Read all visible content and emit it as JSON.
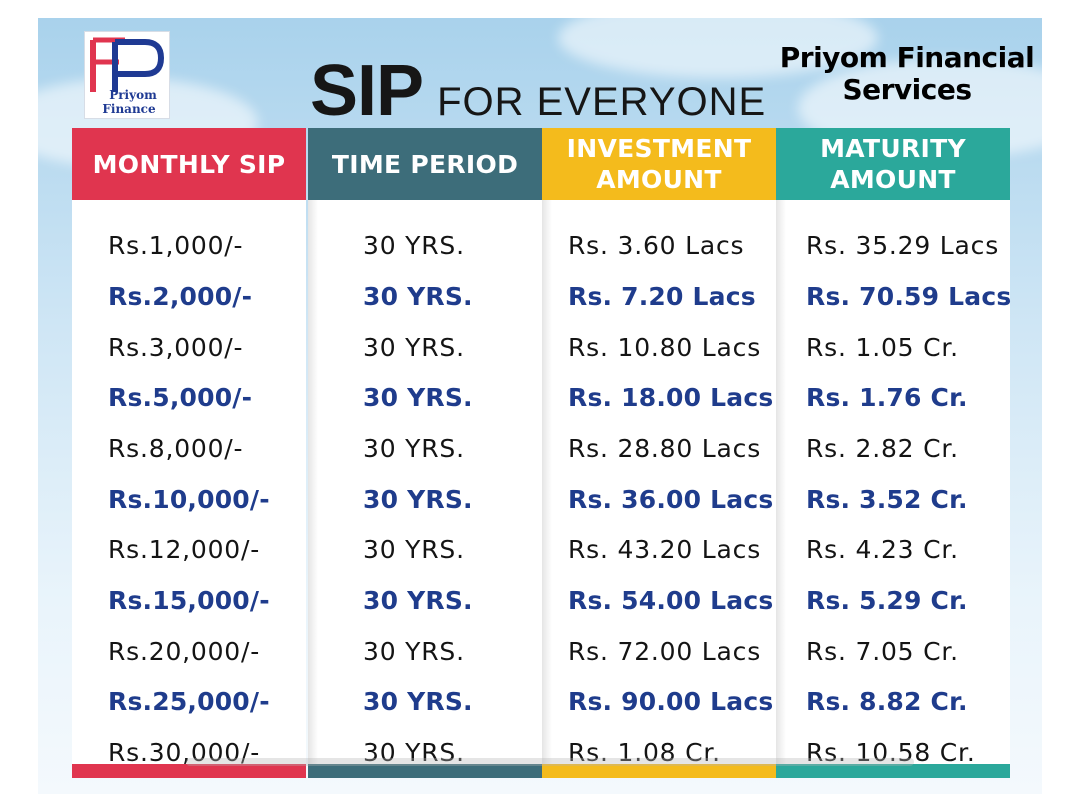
{
  "logo": {
    "line1": "Priyom",
    "line2": "Finance"
  },
  "title": {
    "main": "SIP",
    "rest": "FOR EVERYONE"
  },
  "brand": {
    "line1": "Priyom Financial",
    "line2": "Services"
  },
  "colors": {
    "red": "#e0354f",
    "teal_dark": "#3d6d7a",
    "yellow": "#f4bb1c",
    "teal": "#2ba89b",
    "row_bold": "#1f3c8c"
  },
  "columns": [
    {
      "header": [
        "MONTHLY SIP"
      ],
      "color": "#e0354f",
      "values": [
        "Rs.1,000/-",
        "Rs.2,000/-",
        "Rs.3,000/-",
        "Rs.5,000/-",
        "Rs.8,000/-",
        "Rs.10,000/-",
        "Rs.12,000/-",
        "Rs.15,000/-",
        "Rs.20,000/-",
        "Rs.25,000/-",
        "Rs.30,000/-"
      ]
    },
    {
      "header": [
        "TIME PERIOD"
      ],
      "color": "#3d6d7a",
      "values": [
        "30 YRS.",
        "30 YRS.",
        "30 YRS.",
        "30 YRS.",
        "30 YRS.",
        "30 YRS.",
        "30 YRS.",
        "30 YRS.",
        "30 YRS.",
        "30 YRS.",
        "30 YRS."
      ]
    },
    {
      "header": [
        "INVESTMENT",
        "AMOUNT"
      ],
      "color": "#f4bb1c",
      "values": [
        "Rs. 3.60 Lacs",
        "Rs. 7.20 Lacs",
        "Rs. 10.80 Lacs",
        "Rs. 18.00 Lacs",
        "Rs. 28.80 Lacs",
        "Rs. 36.00 Lacs",
        "Rs. 43.20 Lacs",
        "Rs. 54.00 Lacs",
        "Rs. 72.00 Lacs",
        "Rs. 90.00 Lacs",
        "Rs. 1.08 Cr."
      ]
    },
    {
      "header": [
        "MATURITY",
        "AMOUNT"
      ],
      "color": "#2ba89b",
      "values": [
        "Rs. 35.29 Lacs",
        "Rs. 70.59 Lacs",
        "Rs. 1.05 Cr.",
        "Rs. 1.76 Cr.",
        "Rs. 2.82 Cr.",
        "Rs. 3.52 Cr.",
        "Rs. 4.23 Cr.",
        "Rs. 5.29 Cr.",
        "Rs. 7.05 Cr.",
        "Rs. 8.82 Cr.",
        "Rs. 10.58 Cr."
      ]
    }
  ]
}
